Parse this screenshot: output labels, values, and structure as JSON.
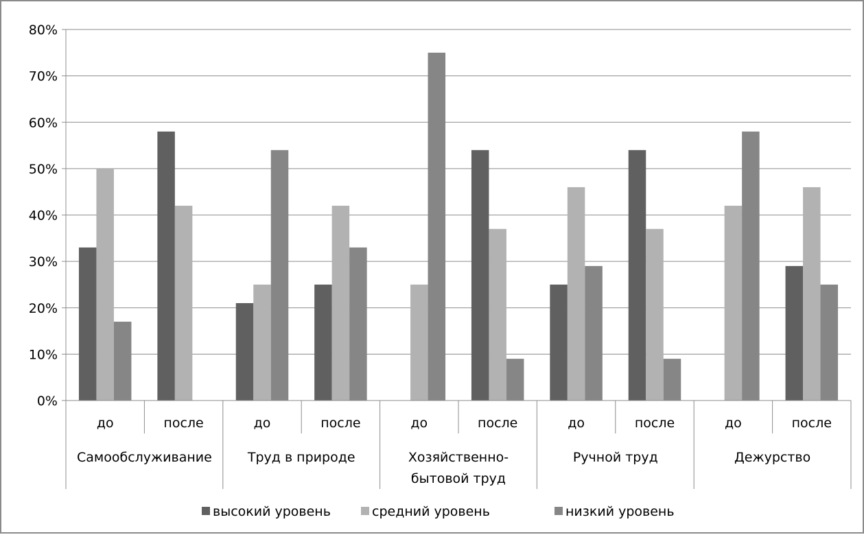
{
  "chart_data": {
    "type": "bar",
    "title": "",
    "xlabel": "",
    "ylabel": "",
    "ylim": [
      0,
      0.8
    ],
    "y_ticks": [
      "0%",
      "10%",
      "20%",
      "30%",
      "40%",
      "50%",
      "60%",
      "70%",
      "80%"
    ],
    "grid": true,
    "legend_position": "bottom",
    "groups": [
      {
        "label_lines": [
          "Самообслуживание"
        ]
      },
      {
        "label_lines": [
          "Труд в природе"
        ]
      },
      {
        "label_lines": [
          "Хозяйственно-",
          "бытовой труд"
        ]
      },
      {
        "label_lines": [
          "Ручной труд"
        ]
      },
      {
        "label_lines": [
          "Дежурство"
        ]
      }
    ],
    "categories": [
      "до",
      "после",
      "до",
      "после",
      "до",
      "после",
      "до",
      "после",
      "до",
      "после"
    ],
    "series": [
      {
        "name": "высокий уровень",
        "color": "#606060",
        "values": [
          0.33,
          0.58,
          0.21,
          0.25,
          0.0,
          0.54,
          0.25,
          0.54,
          0.0,
          0.29
        ]
      },
      {
        "name": "средний уровень",
        "color": "#b2b2b2",
        "values": [
          0.5,
          0.42,
          0.25,
          0.42,
          0.25,
          0.37,
          0.46,
          0.37,
          0.42,
          0.46
        ]
      },
      {
        "name": "низкий уровень",
        "color": "#868686",
        "values": [
          0.17,
          0.0,
          0.54,
          0.33,
          0.75,
          0.09,
          0.29,
          0.09,
          0.58,
          0.25
        ]
      }
    ]
  }
}
